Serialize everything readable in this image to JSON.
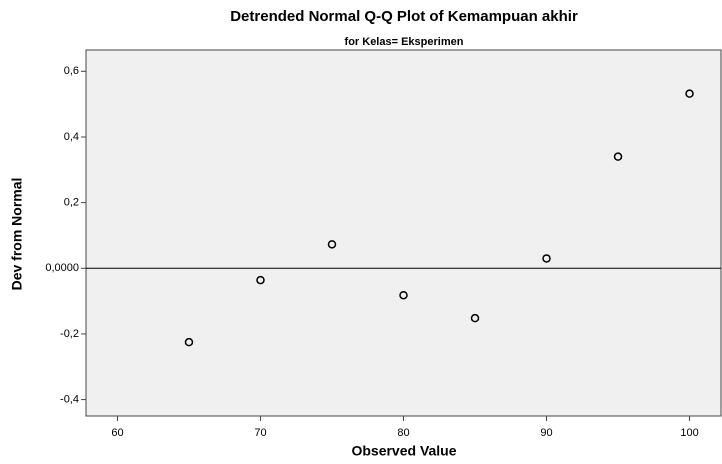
{
  "chart_data": {
    "type": "scatter",
    "title": "Detrended Normal Q-Q Plot of Kemampuan akhir",
    "subtitle": "for Kelas= Eksperimen",
    "x_label": "Observed Value",
    "y_label": "Dev from Normal",
    "x": [
      65,
      70,
      75,
      80,
      85,
      90,
      95,
      100
    ],
    "values": [
      -0.225,
      -0.036,
      0.073,
      -0.082,
      -0.152,
      0.03,
      0.34,
      0.532
    ],
    "xlim": [
      57.8,
      102.2
    ],
    "ylim": [
      -0.45,
      0.665
    ],
    "xticks": [
      60,
      70,
      80,
      90,
      100
    ],
    "yticks": [
      {
        "value": 0.6,
        "label": "0,6"
      },
      {
        "value": 0.4,
        "label": "0,4"
      },
      {
        "value": 0.2,
        "label": "0,2"
      },
      {
        "value": 0,
        "label": "0,0000"
      },
      {
        "value": -0.2,
        "label": "-0,2"
      },
      {
        "value": -0.4,
        "label": "-0,4"
      }
    ],
    "reference_y": 0,
    "marker_color": "#000000",
    "background": "#f0f0f0"
  }
}
